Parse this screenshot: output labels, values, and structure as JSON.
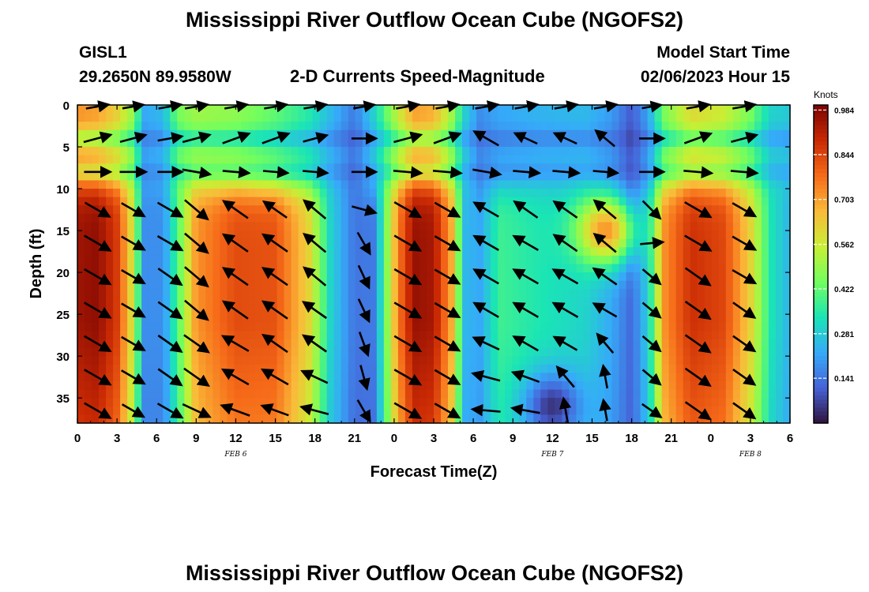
{
  "figure": {
    "title": "Mississippi River Outflow Ocean Cube (NGOFS2)",
    "station_id": "GISL1",
    "station_coords": "29.2650N  89.9580W",
    "subtitle": "2-D Currents Speed-Magnitude",
    "model_start_label": "Model Start Time",
    "model_start_value": "02/06/2023 Hour 15",
    "second_title": "Mississippi River Outflow Ocean Cube (NGOFS2)"
  },
  "chart_data": {
    "type": "heatmap",
    "xlabel": "Forecast Time(Z)",
    "ylabel": "Depth (ft)",
    "x_tick_hours": [
      0,
      3,
      6,
      9,
      12,
      15,
      18,
      21,
      24,
      27,
      30,
      33,
      36,
      39,
      42,
      45,
      48,
      51,
      54
    ],
    "x_tick_labels": [
      "0",
      "3",
      "6",
      "9",
      "12",
      "15",
      "18",
      "21",
      "0",
      "3",
      "6",
      "9",
      "12",
      "15",
      "18",
      "21",
      "0",
      "3",
      "6"
    ],
    "xlim_hours": [
      0,
      54
    ],
    "date_labels": [
      {
        "hour": 12,
        "text": "FEB 6"
      },
      {
        "hour": 36,
        "text": "FEB 7"
      },
      {
        "hour": 51,
        "text": "FEB 8"
      }
    ],
    "y_ticks": [
      0,
      5,
      10,
      15,
      20,
      25,
      30,
      35
    ],
    "ylim": [
      0,
      38
    ],
    "y_inverted": true,
    "colorbar": {
      "unit": "Knots",
      "ticks": [
        0.984,
        0.844,
        0.703,
        0.562,
        0.422,
        0.281,
        0.141
      ],
      "tick_labels": [
        "0.984",
        "0.844",
        "0.703",
        "0.562",
        "0.422",
        "0.281",
        "0.141"
      ],
      "range": [
        0.0,
        1.0
      ],
      "colormap": [
        "#30123b",
        "#4662d7",
        "#36aaf9",
        "#1ae4b6",
        "#72fe5e",
        "#c8ef34",
        "#faba39",
        "#f66b19",
        "#ca2a04",
        "#7a0403"
      ]
    },
    "speed_columns": [
      {
        "hour": 0,
        "surface": 0.72,
        "deep": 0.95
      },
      {
        "hour": 1.5,
        "surface": 0.7,
        "deep": 0.97
      },
      {
        "hour": 3,
        "surface": 0.62,
        "deep": 0.86
      },
      {
        "hour": 4.3,
        "surface": 0.48,
        "deep": 0.55
      },
      {
        "hour": 5,
        "surface": 0.22,
        "deep": 0.18
      },
      {
        "hour": 6.5,
        "surface": 0.25,
        "deep": 0.18
      },
      {
        "hour": 7.6,
        "surface": 0.45,
        "deep": 0.4
      },
      {
        "hour": 9,
        "surface": 0.5,
        "deep": 0.72
      },
      {
        "hour": 12,
        "surface": 0.48,
        "deep": 0.83
      },
      {
        "hour": 15,
        "surface": 0.42,
        "deep": 0.82
      },
      {
        "hour": 17.5,
        "surface": 0.35,
        "deep": 0.62
      },
      {
        "hour": 19.2,
        "surface": 0.25,
        "deep": 0.3
      },
      {
        "hour": 21,
        "surface": 0.15,
        "deep": 0.14
      },
      {
        "hour": 22.5,
        "surface": 0.3,
        "deep": 0.15
      },
      {
        "hour": 24.3,
        "surface": 0.55,
        "deep": 0.75
      },
      {
        "hour": 25.5,
        "surface": 0.7,
        "deep": 0.96
      },
      {
        "hour": 27,
        "surface": 0.68,
        "deep": 0.94
      },
      {
        "hour": 28.4,
        "surface": 0.5,
        "deep": 0.68
      },
      {
        "hour": 29.3,
        "surface": 0.3,
        "deep": 0.25
      },
      {
        "hour": 30.5,
        "surface": 0.18,
        "deep": 0.22
      },
      {
        "hour": 32,
        "surface": 0.22,
        "deep": 0.38
      },
      {
        "hour": 35,
        "surface": 0.24,
        "deep": 0.34
      },
      {
        "hour": 38.5,
        "surface": 0.25,
        "deep": 0.3
      },
      {
        "hour": 40.5,
        "surface": 0.2,
        "deep": 0.22
      },
      {
        "hour": 42,
        "surface": 0.1,
        "deep": 0.12
      },
      {
        "hour": 43.3,
        "surface": 0.22,
        "deep": 0.3
      },
      {
        "hour": 44.4,
        "surface": 0.45,
        "deep": 0.72
      },
      {
        "hour": 46.5,
        "surface": 0.6,
        "deep": 0.88
      },
      {
        "hour": 49,
        "surface": 0.56,
        "deep": 0.84
      },
      {
        "hour": 51,
        "surface": 0.45,
        "deep": 0.62
      },
      {
        "hour": 52.5,
        "surface": 0.3,
        "deep": 0.34
      },
      {
        "hour": 54,
        "surface": 0.28,
        "deep": 0.24
      }
    ],
    "slow_layers": [
      {
        "depth": 4,
        "min_factor": 0.72
      },
      {
        "depth": 8,
        "min_factor": 0.8
      }
    ],
    "fast_patches": [
      {
        "hour": 40,
        "depth": 15,
        "speed": 0.72
      },
      {
        "hour": 36,
        "depth": 36,
        "speed": 0.05
      }
    ],
    "vectors": {
      "hours": [
        1.5,
        4.2,
        7,
        9,
        12,
        15,
        18,
        21.7,
        25,
        28,
        31,
        34,
        37,
        40,
        43.5,
        47,
        50.5
      ],
      "depths": [
        0,
        4,
        8,
        12.5,
        16.5,
        20.5,
        24.5,
        28.5,
        32.5,
        36.5
      ],
      "directions_deg": [
        [
          10,
          10,
          10,
          10,
          10,
          10,
          10,
          10,
          10,
          10,
          10,
          10,
          10,
          10,
          10,
          10,
          10
        ],
        [
          15,
          15,
          10,
          15,
          20,
          20,
          15,
          0,
          15,
          20,
          150,
          155,
          155,
          140,
          0,
          20,
          15
        ],
        [
          0,
          0,
          0,
          -10,
          -5,
          -5,
          -5,
          0,
          -5,
          -5,
          -10,
          -5,
          -5,
          -5,
          0,
          -5,
          -5
        ],
        [
          -30,
          -30,
          -30,
          -40,
          145,
          145,
          140,
          -15,
          -30,
          -30,
          150,
          145,
          145,
          140,
          -45,
          -30,
          -30
        ],
        [
          -30,
          -30,
          -30,
          -40,
          145,
          145,
          140,
          -60,
          -30,
          -30,
          150,
          150,
          145,
          140,
          5,
          -30,
          -30
        ],
        [
          -30,
          -30,
          -35,
          -40,
          145,
          145,
          140,
          -65,
          -30,
          -30,
          150,
          150,
          150,
          145,
          -40,
          -35,
          -30
        ],
        [
          -30,
          -30,
          -35,
          -40,
          145,
          145,
          145,
          -65,
          -30,
          -30,
          150,
          150,
          150,
          150,
          -40,
          -35,
          -35
        ],
        [
          -30,
          -30,
          -35,
          -35,
          150,
          145,
          145,
          -70,
          -30,
          -30,
          155,
          150,
          150,
          130,
          -40,
          -35,
          -35
        ],
        [
          -30,
          -30,
          -35,
          -35,
          150,
          150,
          155,
          -75,
          -30,
          -30,
          165,
          160,
          130,
          100,
          -40,
          -35,
          -35
        ],
        [
          -30,
          -30,
          -30,
          -25,
          160,
          160,
          165,
          -60,
          -30,
          -30,
          175,
          170,
          100,
          100,
          -35,
          -35,
          -35
        ]
      ],
      "magnitudes": [
        [
          0.5,
          0.4,
          0.5,
          0.5,
          0.5,
          0.5,
          0.5,
          0.4,
          0.5,
          0.5,
          0.5,
          0.5,
          0.5,
          0.5,
          0.3,
          0.5,
          0.5
        ],
        [
          0.8,
          0.7,
          0.6,
          0.8,
          0.8,
          0.8,
          0.6,
          0.6,
          0.8,
          0.8,
          0.8,
          0.6,
          0.6,
          0.6,
          0.6,
          0.8,
          0.7
        ],
        [
          0.7,
          0.7,
          0.6,
          0.8,
          0.7,
          0.6,
          0.6,
          0.6,
          0.8,
          0.8,
          0.8,
          0.7,
          0.7,
          0.6,
          0.6,
          0.8,
          0.7
        ],
        [
          0.8,
          0.7,
          0.8,
          0.9,
          0.9,
          0.8,
          0.8,
          0.6,
          0.9,
          0.8,
          0.8,
          0.8,
          0.8,
          0.8,
          0.6,
          0.9,
          0.7
        ],
        [
          0.9,
          0.7,
          0.8,
          0.9,
          0.9,
          0.9,
          0.8,
          0.6,
          0.9,
          0.8,
          0.8,
          0.8,
          0.8,
          0.8,
          0.5,
          0.9,
          0.7
        ],
        [
          0.9,
          0.7,
          0.8,
          0.9,
          0.9,
          0.9,
          0.8,
          0.6,
          0.9,
          0.8,
          0.8,
          0.8,
          0.8,
          0.8,
          0.5,
          0.9,
          0.7
        ],
        [
          0.9,
          0.7,
          0.8,
          0.9,
          0.9,
          0.9,
          0.8,
          0.6,
          0.9,
          0.8,
          0.8,
          0.8,
          0.8,
          0.7,
          0.5,
          0.9,
          0.7
        ],
        [
          0.9,
          0.7,
          0.8,
          0.9,
          0.9,
          0.9,
          0.8,
          0.6,
          0.9,
          0.8,
          0.8,
          0.8,
          0.7,
          0.6,
          0.5,
          0.9,
          0.7
        ],
        [
          0.9,
          0.7,
          0.8,
          0.9,
          0.9,
          0.9,
          0.8,
          0.6,
          0.9,
          0.8,
          0.8,
          0.8,
          0.7,
          0.5,
          0.5,
          0.9,
          0.7
        ],
        [
          0.9,
          0.6,
          0.8,
          0.9,
          0.9,
          0.8,
          0.8,
          0.6,
          0.9,
          0.8,
          0.8,
          0.8,
          0.6,
          0.4,
          0.5,
          0.9,
          0.7
        ]
      ]
    }
  }
}
